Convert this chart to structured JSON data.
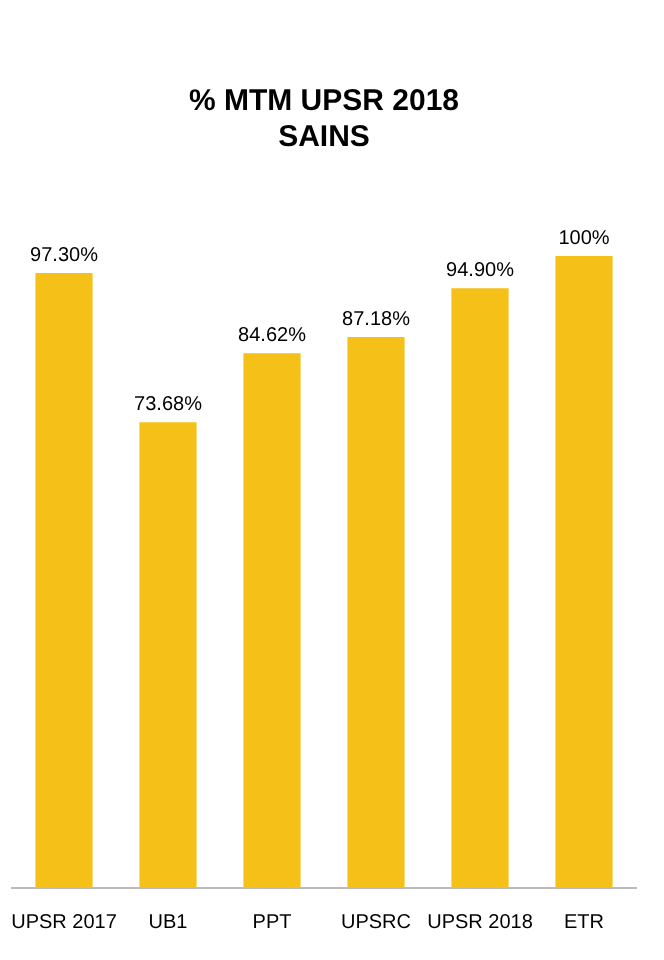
{
  "chart_data": {
    "type": "bar",
    "title": [
      "% MTM UPSR 2018",
      "SAINS"
    ],
    "categories": [
      "UPSR 2017",
      "UB1",
      "PPT",
      "UPSRC",
      "UPSR 2018",
      "ETR"
    ],
    "values": [
      97.3,
      73.68,
      84.62,
      87.18,
      94.9,
      100
    ],
    "value_labels": [
      "97.30%",
      "73.68%",
      "84.62%",
      "87.18%",
      "94.90%",
      "100%"
    ],
    "color": "#f5c018",
    "grid": false,
    "legend": false
  }
}
